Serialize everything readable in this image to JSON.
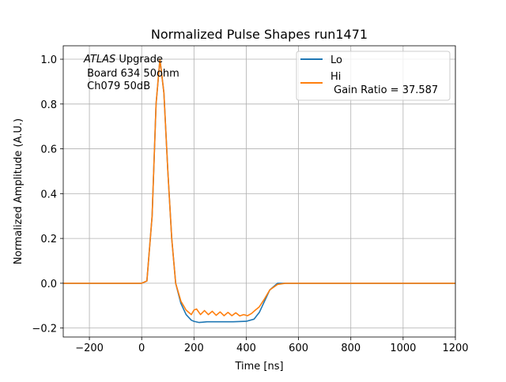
{
  "chart_data": {
    "type": "line",
    "title": "Normalized Pulse Shapes run1471",
    "xlabel": "Time [ns]",
    "ylabel": "Normalized Amplitude (A.U.)",
    "xlim": [
      -300,
      1200
    ],
    "ylim": [
      -0.24,
      1.06
    ],
    "xticks": [
      -200,
      0,
      200,
      400,
      600,
      800,
      1000,
      1200
    ],
    "xtick_labels": [
      "−200",
      "0",
      "200",
      "400",
      "600",
      "800",
      "1000",
      "1200"
    ],
    "yticks": [
      -0.2,
      0.0,
      0.2,
      0.4,
      0.6,
      0.8,
      1.0
    ],
    "ytick_labels": [
      "−0.2",
      "0.0",
      "0.2",
      "0.4",
      "0.6",
      "0.8",
      "1.0"
    ],
    "grid": true,
    "legend_position": "top-right",
    "annotation": {
      "italic_part": "ATLAS",
      "line1_rest": " Upgrade",
      "line2": " Board 634 50ohm",
      "line3": " Ch079 50dB"
    },
    "series": [
      {
        "name": "Lo",
        "legend_lines": [
          "Lo"
        ],
        "color": "#1f77b4",
        "x": [
          -300,
          -200,
          -100,
          0,
          20,
          40,
          55,
          70,
          85,
          100,
          115,
          130,
          150,
          170,
          190,
          200,
          220,
          250,
          300,
          350,
          400,
          430,
          450,
          470,
          490,
          520,
          550,
          600,
          700,
          800,
          900,
          1000,
          1100,
          1200
        ],
        "y": [
          0.0,
          0.0,
          0.0,
          0.0,
          0.01,
          0.3,
          0.8,
          1.0,
          0.85,
          0.5,
          0.2,
          0.0,
          -0.09,
          -0.14,
          -0.165,
          -0.17,
          -0.175,
          -0.172,
          -0.172,
          -0.172,
          -0.17,
          -0.16,
          -0.13,
          -0.08,
          -0.03,
          0.0,
          0.0,
          0.0,
          0.0,
          0.0,
          0.0,
          0.0,
          0.0,
          0.0
        ]
      },
      {
        "name": "Hi",
        "legend_lines": [
          "Hi",
          " Gain Ratio = 37.587"
        ],
        "color": "#ff7f0e",
        "x": [
          -300,
          -200,
          -100,
          0,
          20,
          40,
          55,
          70,
          85,
          100,
          115,
          130,
          150,
          170,
          190,
          200,
          210,
          225,
          240,
          255,
          270,
          285,
          300,
          315,
          330,
          345,
          360,
          375,
          390,
          405,
          420,
          435,
          450,
          470,
          490,
          520,
          550,
          600,
          700,
          800,
          900,
          1000,
          1100,
          1200
        ],
        "y": [
          0.0,
          0.0,
          0.0,
          0.0,
          0.01,
          0.3,
          0.8,
          1.0,
          0.85,
          0.5,
          0.2,
          0.0,
          -0.08,
          -0.12,
          -0.14,
          -0.12,
          -0.115,
          -0.14,
          -0.122,
          -0.14,
          -0.125,
          -0.143,
          -0.128,
          -0.145,
          -0.13,
          -0.145,
          -0.132,
          -0.146,
          -0.14,
          -0.145,
          -0.135,
          -0.12,
          -0.105,
          -0.07,
          -0.03,
          -0.005,
          0.0,
          0.0,
          0.0,
          0.0,
          0.0,
          0.0,
          0.0,
          0.0
        ]
      }
    ]
  }
}
